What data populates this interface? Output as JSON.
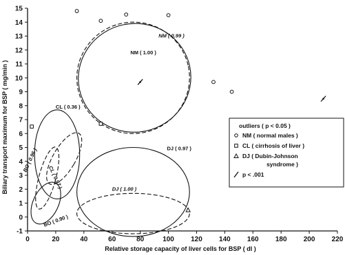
{
  "chart_data": {
    "type": "scatter",
    "xlabel": "Relative storage capacity of liver cells for BSP ( dl )",
    "ylabel": "Biliary transport maximum for BSP ( mg/min )",
    "xlim": [
      0,
      220
    ],
    "ylim": [
      -1,
      15
    ],
    "xticks": [
      "0",
      "20",
      "40",
      "60",
      "80",
      "100",
      "120",
      "140",
      "160",
      "180",
      "200",
      "220"
    ],
    "yticks": [
      "-1",
      "0",
      "1",
      "2",
      "3",
      "4",
      "5",
      "6",
      "7",
      "8",
      "9",
      "10",
      "11",
      "12",
      "13",
      "14",
      "15"
    ],
    "legend": {
      "placement": "right",
      "title": "outliers ( p < 0.05 )",
      "items": [
        {
          "symbol": "circle",
          "label": "NM ( normal males )"
        },
        {
          "symbol": "square",
          "label": "CL ( cirrhosis of liver )"
        },
        {
          "symbol": "triangle",
          "label": "DJ ( Dubin-Johnson",
          "label2": "syndrome )"
        },
        {
          "symbol": "slash",
          "label": "p < .001"
        }
      ]
    },
    "outliers": [
      {
        "group": "NM",
        "symbol": "circle",
        "x": 35,
        "y": 14.8
      },
      {
        "group": "NM",
        "symbol": "circle",
        "x": 52,
        "y": 14.1
      },
      {
        "group": "NM",
        "symbol": "circle",
        "x": 70,
        "y": 14.55
      },
      {
        "group": "NM",
        "symbol": "circle",
        "x": 100,
        "y": 14.5
      },
      {
        "group": "NM",
        "symbol": "circle",
        "x": 132,
        "y": 9.7
      },
      {
        "group": "NM",
        "symbol": "circle",
        "x": 145,
        "y": 9.0
      },
      {
        "group": "CL",
        "symbol": "square",
        "x": 3,
        "y": 6.5
      },
      {
        "group": "CL",
        "symbol": "square",
        "x": 52,
        "y": 6.7
      },
      {
        "group": "DJ",
        "symbol": "triangle",
        "x": 114,
        "y": 0.5
      },
      {
        "group": "NM",
        "symbol": "slash",
        "x": 80,
        "y": 9.7
      },
      {
        "group": "NM",
        "symbol": "slash",
        "x": 210,
        "y": 8.5
      }
    ],
    "ellipses": [
      {
        "label": "NM ( 0.99 )",
        "style": "dashed",
        "cx": 75,
        "cy": 10.0,
        "rx": 40,
        "ry": 4.0,
        "rot": 12
      },
      {
        "label": "NM ( 1.00 )",
        "style": "solid",
        "cx": 76,
        "cy": 10.0,
        "rx": 40,
        "ry": 3.9,
        "rot": 12
      },
      {
        "label": "CL ( 0.36 )",
        "style": "solid",
        "cx": 21,
        "cy": 4.5,
        "rx": 16,
        "ry": 3.2,
        "rot": 0
      },
      {
        "label": "CL ( 0.97 )",
        "style": "dashed",
        "cx": 26,
        "cy": 4.2,
        "rx": 8,
        "ry": 2.1,
        "rot": -30
      },
      {
        "label": "BO ( 0.96 )",
        "style": "dashed",
        "cx": 14,
        "cy": 2.8,
        "rx": 6,
        "ry": 2.3,
        "rot": -15
      },
      {
        "label": "BO ( 0.90 )",
        "style": "solid",
        "cx": 13,
        "cy": 1.0,
        "rx": 9,
        "ry": 1.6,
        "rot": -25
      },
      {
        "label": "DJ ( 0.97 )",
        "style": "solid",
        "cx": 75,
        "cy": 1.8,
        "rx": 40,
        "ry": 3.2,
        "rot": 0
      },
      {
        "label": "DJ ( 1.00 )",
        "style": "dashed",
        "cx": 75,
        "cy": 0.25,
        "rx": 40,
        "ry": 1.45,
        "rot": 0
      }
    ],
    "annotations": [
      {
        "text": "NM ( 0.99 )",
        "x": 93,
        "y": 12.9,
        "italic": true
      },
      {
        "text": "NM ( 1.00 )",
        "x": 73,
        "y": 11.7,
        "italic": false
      },
      {
        "text": "CL ( 0.36 )",
        "x": 20,
        "y": 7.8,
        "italic": false
      },
      {
        "text": "DJ ( 0.97 )",
        "x": 99,
        "y": 4.8,
        "italic": false
      },
      {
        "text": "DJ ( 1.00 )",
        "x": 60,
        "y": 1.9,
        "italic": true
      },
      {
        "text": "BO ( 0.96 )",
        "x": -1,
        "y": 3.2,
        "italic": true,
        "rotate": -65
      },
      {
        "text": "CL ( 0.97 )",
        "x": 15,
        "y": 3.6,
        "italic": true,
        "rotate": 65
      },
      {
        "text": "BO ( 0.90 )",
        "x": 12,
        "y": -0.7,
        "italic": false,
        "rotate": -20
      }
    ]
  }
}
